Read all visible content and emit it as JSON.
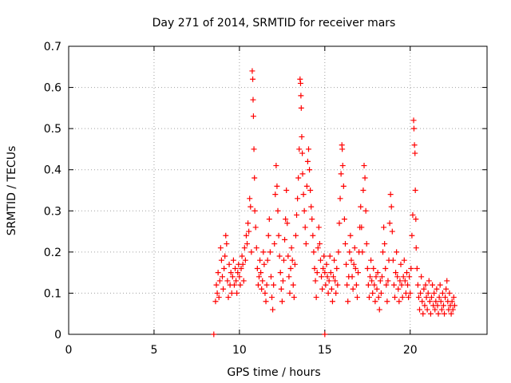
{
  "chart_data": {
    "type": "scatter",
    "title": "Day 271 of 2014, SRMTID for receiver mars",
    "xlabel": "GPS time / hours",
    "ylabel": "SRMTID / TECUs",
    "xlim": [
      0,
      24.5
    ],
    "ylim": [
      0,
      0.7
    ],
    "x_ticks": [
      0,
      5,
      10,
      15,
      20
    ],
    "x_tick_labels": [
      "0",
      "5",
      "10",
      "15",
      "20"
    ],
    "y_ticks": [
      0,
      0.1,
      0.2,
      0.3,
      0.4,
      0.5,
      0.6,
      0.7
    ],
    "y_tick_labels": [
      "0",
      "0.1",
      "0.2",
      "0.3",
      "0.4",
      "0.5",
      "0.6",
      "0.7"
    ],
    "grid": true,
    "marker": "plus",
    "color": "#ff0000",
    "series": [
      {
        "name": "SRMTID",
        "points": [
          [
            8.5,
            0.0
          ],
          [
            15.0,
            0.0
          ],
          [
            8.6,
            0.08
          ],
          [
            8.65,
            0.12
          ],
          [
            8.7,
            0.1
          ],
          [
            8.75,
            0.15
          ],
          [
            8.8,
            0.09
          ],
          [
            8.85,
            0.13
          ],
          [
            8.9,
            0.21
          ],
          [
            8.95,
            0.18
          ],
          [
            9.0,
            0.14
          ],
          [
            9.05,
            0.11
          ],
          [
            9.1,
            0.16
          ],
          [
            9.15,
            0.19
          ],
          [
            9.2,
            0.24
          ],
          [
            9.25,
            0.22
          ],
          [
            9.3,
            0.13
          ],
          [
            9.35,
            0.09
          ],
          [
            9.4,
            0.17
          ],
          [
            9.45,
            0.12
          ],
          [
            9.5,
            0.15
          ],
          [
            9.55,
            0.1
          ],
          [
            9.6,
            0.14
          ],
          [
            9.65,
            0.18
          ],
          [
            9.7,
            0.12
          ],
          [
            9.75,
            0.16
          ],
          [
            9.8,
            0.13
          ],
          [
            9.85,
            0.1
          ],
          [
            9.9,
            0.15
          ],
          [
            9.95,
            0.17
          ],
          [
            10.0,
            0.14
          ],
          [
            10.05,
            0.12
          ],
          [
            10.1,
            0.16
          ],
          [
            10.15,
            0.19
          ],
          [
            10.2,
            0.17
          ],
          [
            10.25,
            0.13
          ],
          [
            10.3,
            0.21
          ],
          [
            10.35,
            0.18
          ],
          [
            10.4,
            0.24
          ],
          [
            10.45,
            0.22
          ],
          [
            10.5,
            0.27
          ],
          [
            10.55,
            0.25
          ],
          [
            10.6,
            0.33
          ],
          [
            10.65,
            0.31
          ],
          [
            10.7,
            0.2
          ],
          [
            10.75,
            0.64
          ],
          [
            10.78,
            0.62
          ],
          [
            10.8,
            0.57
          ],
          [
            10.82,
            0.53
          ],
          [
            10.85,
            0.45
          ],
          [
            10.88,
            0.38
          ],
          [
            10.9,
            0.3
          ],
          [
            10.95,
            0.26
          ],
          [
            11.0,
            0.21
          ],
          [
            11.05,
            0.16
          ],
          [
            11.1,
            0.12
          ],
          [
            11.15,
            0.14
          ],
          [
            11.2,
            0.18
          ],
          [
            11.25,
            0.15
          ],
          [
            11.3,
            0.11
          ],
          [
            11.35,
            0.13
          ],
          [
            11.4,
            0.2
          ],
          [
            11.45,
            0.17
          ],
          [
            11.5,
            0.1
          ],
          [
            11.55,
            0.08
          ],
          [
            11.6,
            0.12
          ],
          [
            11.65,
            0.18
          ],
          [
            11.7,
            0.24
          ],
          [
            11.75,
            0.28
          ],
          [
            11.8,
            0.2
          ],
          [
            11.85,
            0.14
          ],
          [
            11.9,
            0.09
          ],
          [
            11.95,
            0.06
          ],
          [
            12.0,
            0.12
          ],
          [
            12.05,
            0.22
          ],
          [
            12.1,
            0.34
          ],
          [
            12.15,
            0.41
          ],
          [
            12.2,
            0.36
          ],
          [
            12.25,
            0.3
          ],
          [
            12.3,
            0.24
          ],
          [
            12.35,
            0.19
          ],
          [
            12.4,
            0.15
          ],
          [
            12.45,
            0.11
          ],
          [
            12.5,
            0.08
          ],
          [
            12.55,
            0.13
          ],
          [
            12.6,
            0.18
          ],
          [
            12.65,
            0.23
          ],
          [
            12.7,
            0.28
          ],
          [
            12.75,
            0.35
          ],
          [
            12.8,
            0.27
          ],
          [
            12.85,
            0.19
          ],
          [
            12.9,
            0.14
          ],
          [
            12.95,
            0.1
          ],
          [
            13.0,
            0.16
          ],
          [
            13.05,
            0.21
          ],
          [
            13.1,
            0.18
          ],
          [
            13.15,
            0.12
          ],
          [
            13.2,
            0.09
          ],
          [
            13.25,
            0.17
          ],
          [
            13.3,
            0.24
          ],
          [
            13.35,
            0.29
          ],
          [
            13.4,
            0.33
          ],
          [
            13.45,
            0.38
          ],
          [
            13.5,
            0.45
          ],
          [
            13.55,
            0.62
          ],
          [
            13.58,
            0.61
          ],
          [
            13.6,
            0.58
          ],
          [
            13.62,
            0.55
          ],
          [
            13.65,
            0.48
          ],
          [
            13.68,
            0.44
          ],
          [
            13.7,
            0.39
          ],
          [
            13.75,
            0.34
          ],
          [
            13.8,
            0.3
          ],
          [
            13.85,
            0.26
          ],
          [
            13.9,
            0.22
          ],
          [
            13.95,
            0.36
          ],
          [
            14.0,
            0.42
          ],
          [
            14.05,
            0.45
          ],
          [
            14.1,
            0.4
          ],
          [
            14.15,
            0.35
          ],
          [
            14.2,
            0.31
          ],
          [
            14.25,
            0.28
          ],
          [
            14.3,
            0.24
          ],
          [
            14.35,
            0.2
          ],
          [
            14.4,
            0.16
          ],
          [
            14.45,
            0.13
          ],
          [
            14.5,
            0.09
          ],
          [
            14.55,
            0.15
          ],
          [
            14.6,
            0.21
          ],
          [
            14.65,
            0.26
          ],
          [
            14.7,
            0.22
          ],
          [
            14.75,
            0.18
          ],
          [
            14.8,
            0.14
          ],
          [
            14.85,
            0.11
          ],
          [
            14.9,
            0.16
          ],
          [
            14.95,
            0.19
          ],
          [
            15.0,
            0.15
          ],
          [
            15.05,
            0.12
          ],
          [
            15.1,
            0.17
          ],
          [
            15.15,
            0.14
          ],
          [
            15.2,
            0.1
          ],
          [
            15.25,
            0.13
          ],
          [
            15.3,
            0.19
          ],
          [
            15.35,
            0.15
          ],
          [
            15.4,
            0.11
          ],
          [
            15.45,
            0.08
          ],
          [
            15.5,
            0.14
          ],
          [
            15.55,
            0.18
          ],
          [
            15.6,
            0.13
          ],
          [
            15.65,
            0.1
          ],
          [
            15.7,
            0.16
          ],
          [
            15.75,
            0.12
          ],
          [
            15.8,
            0.2
          ],
          [
            15.85,
            0.27
          ],
          [
            15.9,
            0.33
          ],
          [
            15.95,
            0.39
          ],
          [
            16.0,
            0.46
          ],
          [
            16.02,
            0.45
          ],
          [
            16.05,
            0.41
          ],
          [
            16.1,
            0.36
          ],
          [
            16.15,
            0.28
          ],
          [
            16.2,
            0.22
          ],
          [
            16.25,
            0.17
          ],
          [
            16.3,
            0.12
          ],
          [
            16.35,
            0.08
          ],
          [
            16.4,
            0.14
          ],
          [
            16.45,
            0.2
          ],
          [
            16.5,
            0.24
          ],
          [
            16.55,
            0.18
          ],
          [
            16.6,
            0.14
          ],
          [
            16.65,
            0.11
          ],
          [
            16.7,
            0.17
          ],
          [
            16.75,
            0.21
          ],
          [
            16.8,
            0.16
          ],
          [
            16.85,
            0.12
          ],
          [
            16.9,
            0.09
          ],
          [
            16.95,
            0.15
          ],
          [
            17.0,
            0.2
          ],
          [
            17.05,
            0.26
          ],
          [
            17.1,
            0.31
          ],
          [
            17.15,
            0.26
          ],
          [
            17.2,
            0.2
          ],
          [
            17.25,
            0.35
          ],
          [
            17.3,
            0.41
          ],
          [
            17.35,
            0.38
          ],
          [
            17.4,
            0.3
          ],
          [
            17.45,
            0.22
          ],
          [
            17.5,
            0.16
          ],
          [
            17.55,
            0.12
          ],
          [
            17.6,
            0.09
          ],
          [
            17.65,
            0.14
          ],
          [
            17.7,
            0.18
          ],
          [
            17.75,
            0.13
          ],
          [
            17.8,
            0.1
          ],
          [
            17.85,
            0.16
          ],
          [
            17.9,
            0.12
          ],
          [
            17.95,
            0.08
          ],
          [
            18.0,
            0.14
          ],
          [
            18.05,
            0.11
          ],
          [
            18.1,
            0.15
          ],
          [
            18.15,
            0.09
          ],
          [
            18.2,
            0.06
          ],
          [
            18.25,
            0.13
          ],
          [
            18.3,
            0.1
          ],
          [
            18.35,
            0.14
          ],
          [
            18.4,
            0.2
          ],
          [
            18.45,
            0.26
          ],
          [
            18.5,
            0.22
          ],
          [
            18.55,
            0.16
          ],
          [
            18.6,
            0.12
          ],
          [
            18.65,
            0.08
          ],
          [
            18.7,
            0.13
          ],
          [
            18.75,
            0.18
          ],
          [
            18.8,
            0.27
          ],
          [
            18.85,
            0.34
          ],
          [
            18.9,
            0.31
          ],
          [
            18.95,
            0.25
          ],
          [
            19.0,
            0.18
          ],
          [
            19.05,
            0.12
          ],
          [
            19.1,
            0.09
          ],
          [
            19.15,
            0.15
          ],
          [
            19.2,
            0.2
          ],
          [
            19.25,
            0.14
          ],
          [
            19.3,
            0.11
          ],
          [
            19.35,
            0.08
          ],
          [
            19.4,
            0.13
          ],
          [
            19.45,
            0.17
          ],
          [
            19.5,
            0.12
          ],
          [
            19.55,
            0.09
          ],
          [
            19.6,
            0.14
          ],
          [
            19.65,
            0.18
          ],
          [
            19.7,
            0.13
          ],
          [
            19.75,
            0.1
          ],
          [
            19.8,
            0.15
          ],
          [
            19.85,
            0.12
          ],
          [
            19.9,
            0.09
          ],
          [
            19.95,
            0.14
          ],
          [
            20.0,
            0.1
          ],
          [
            20.05,
            0.16
          ],
          [
            20.1,
            0.24
          ],
          [
            20.15,
            0.29
          ],
          [
            20.2,
            0.52
          ],
          [
            20.22,
            0.5
          ],
          [
            20.25,
            0.46
          ],
          [
            20.28,
            0.44
          ],
          [
            20.3,
            0.35
          ],
          [
            20.33,
            0.28
          ],
          [
            20.35,
            0.21
          ],
          [
            20.4,
            0.16
          ],
          [
            20.45,
            0.12
          ],
          [
            20.5,
            0.09
          ],
          [
            20.55,
            0.06
          ],
          [
            20.6,
            0.1
          ],
          [
            20.65,
            0.14
          ],
          [
            20.7,
            0.08
          ],
          [
            20.75,
            0.05
          ],
          [
            20.8,
            0.11
          ],
          [
            20.85,
            0.07
          ],
          [
            20.9,
            0.12
          ],
          [
            20.95,
            0.09
          ],
          [
            21.0,
            0.06
          ],
          [
            21.05,
            0.1
          ],
          [
            21.1,
            0.13
          ],
          [
            21.15,
            0.08
          ],
          [
            21.2,
            0.05
          ],
          [
            21.25,
            0.09
          ],
          [
            21.3,
            0.12
          ],
          [
            21.35,
            0.07
          ],
          [
            21.4,
            0.1
          ],
          [
            21.45,
            0.06
          ],
          [
            21.5,
            0.08
          ],
          [
            21.55,
            0.11
          ],
          [
            21.6,
            0.07
          ],
          [
            21.65,
            0.05
          ],
          [
            21.7,
            0.09
          ],
          [
            21.75,
            0.12
          ],
          [
            21.8,
            0.08
          ],
          [
            21.85,
            0.06
          ],
          [
            21.9,
            0.1
          ],
          [
            21.95,
            0.07
          ],
          [
            22.0,
            0.05
          ],
          [
            22.05,
            0.09
          ],
          [
            22.1,
            0.11
          ],
          [
            22.15,
            0.13
          ],
          [
            22.2,
            0.08
          ],
          [
            22.25,
            0.06
          ],
          [
            22.3,
            0.1
          ],
          [
            22.35,
            0.07
          ],
          [
            22.4,
            0.05
          ],
          [
            22.45,
            0.08
          ],
          [
            22.5,
            0.06
          ],
          [
            22.55,
            0.09
          ],
          [
            22.6,
            0.07
          ]
        ]
      }
    ]
  }
}
